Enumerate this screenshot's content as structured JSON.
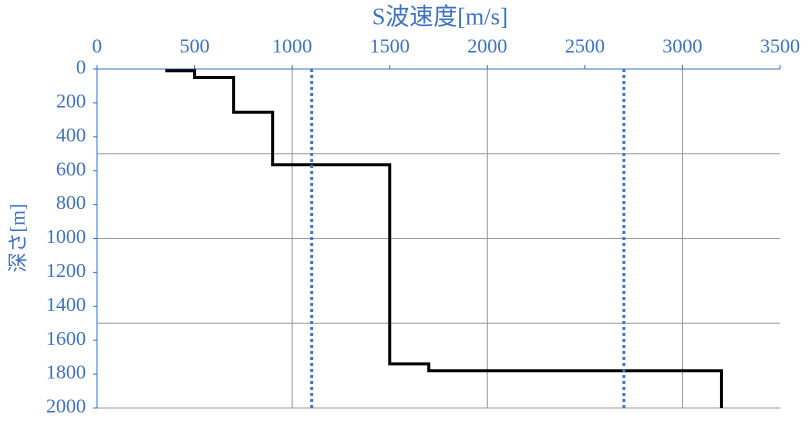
{
  "chart_data": {
    "type": "line",
    "title": "S波速度[m/s]",
    "y_label": "深さ[m]",
    "xlim": [
      0,
      3500
    ],
    "xticks": [
      0,
      500,
      1000,
      1500,
      2000,
      2500,
      3000,
      3500
    ],
    "ylim": [
      0,
      2000
    ],
    "yticks": [
      0,
      200,
      400,
      600,
      800,
      1000,
      1200,
      1400,
      1600,
      1800,
      2000
    ],
    "y_inverted": true,
    "xgrid": [
      1000,
      2000,
      3000
    ],
    "ygrid": [
      500,
      1000,
      1500,
      2000
    ],
    "series": [
      {
        "color": "#000000",
        "style": "solid",
        "x": [
          350,
          500,
          500,
          700,
          700,
          900,
          900,
          1500,
          1500,
          1700,
          1700,
          3200,
          3200
        ],
        "y": [
          10,
          10,
          50,
          50,
          255,
          255,
          565,
          565,
          1740,
          1740,
          1780,
          1780,
          2000
        ]
      },
      {
        "color": "#3a78d0",
        "style": "dotted",
        "x": [
          1100,
          1100
        ],
        "y": [
          0,
          2000
        ]
      },
      {
        "color": "#3a78d0",
        "style": "dotted",
        "x": [
          2700,
          2700
        ],
        "y": [
          0,
          2000
        ]
      }
    ]
  }
}
